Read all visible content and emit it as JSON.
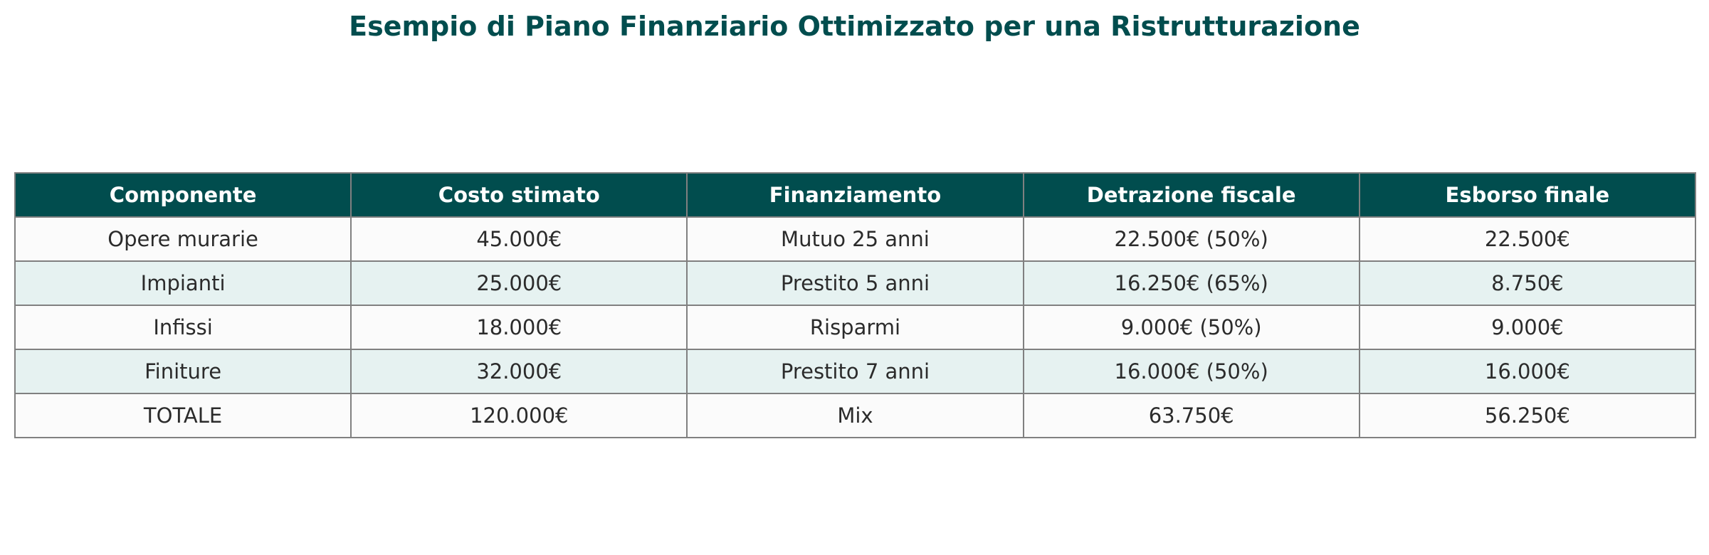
{
  "title": "Esempio di Piano Finanziario Ottimizzato per una Ristrutturazione",
  "colors": {
    "header_bg": "#014d4e",
    "header_text": "#ffffff",
    "title_text": "#014d4e",
    "row_light": "#fbfbfb",
    "row_tinted": "#e6f2f1",
    "border": "#808080"
  },
  "chart_data": {
    "type": "table",
    "title": "Esempio di Piano Finanziario Ottimizzato per una Ristrutturazione",
    "columns": [
      "Componente",
      "Costo stimato",
      "Finanziamento",
      "Detrazione fiscale",
      "Esborso finale"
    ],
    "rows": [
      [
        "Opere murarie",
        "45.000€",
        "Mutuo 25 anni",
        "22.500€ (50%)",
        "22.500€"
      ],
      [
        "Impianti",
        "25.000€",
        "Prestito 5 anni",
        "16.250€ (65%)",
        "8.750€"
      ],
      [
        "Infissi",
        "18.000€",
        "Risparmi",
        "9.000€ (50%)",
        "9.000€"
      ],
      [
        "Finiture",
        "32.000€",
        "Prestito 7 anni",
        "16.000€ (50%)",
        "16.000€"
      ],
      [
        "TOTALE",
        "120.000€",
        "Mix",
        "63.750€",
        "56.250€"
      ]
    ]
  }
}
